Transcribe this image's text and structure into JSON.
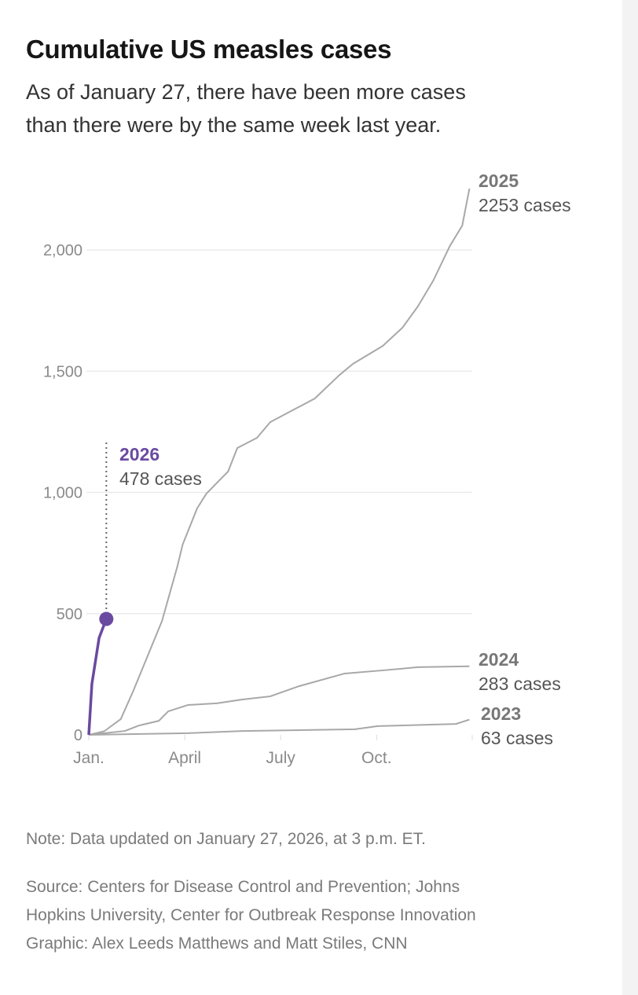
{
  "title": "Cumulative US measles cases",
  "subtitle_lines": [
    "As of January 27, there have been more cases",
    "than there were by the same week last year."
  ],
  "note": "Note: Data updated on January 27, 2026, at 3 p.m. ET.",
  "source_lines": [
    "Source: Centers for Disease Control and Prevention; Johns",
    "Hopkins University, Center for Outbreak Response Innovation",
    "Graphic: Alex Leeds Matthews and Matt Stiles, CNN"
  ],
  "chart_data": {
    "type": "line",
    "title": "Cumulative US measles cases",
    "xlabel": "",
    "ylabel": "",
    "x_ticks": [
      "Jan.",
      "April",
      "July",
      "Oct."
    ],
    "y_ticks": [
      {
        "value": 0,
        "label": "0"
      },
      {
        "value": 500,
        "label": "500"
      },
      {
        "value": 1000,
        "label": "1,000"
      },
      {
        "value": 1500,
        "label": "1,500"
      },
      {
        "value": 2000,
        "label": "2,000"
      }
    ],
    "ylim": [
      0,
      2300
    ],
    "xlim": [
      "Jan 1",
      "Dec 31"
    ],
    "grid": "horizontal",
    "colors": {
      "highlight": "#6a4aa0",
      "other": "#a8a8a8"
    },
    "series": [
      {
        "name": "2025",
        "end_label": "2253 cases",
        "highlight": false,
        "points": [
          [
            "01-01",
            0
          ],
          [
            "01-16",
            15
          ],
          [
            "02-01",
            65
          ],
          [
            "02-13",
            180
          ],
          [
            "03-10",
            470
          ],
          [
            "03-25",
            697
          ],
          [
            "03-30",
            785
          ],
          [
            "04-13",
            934
          ],
          [
            "04-22",
            995
          ],
          [
            "05-12",
            1086
          ],
          [
            "05-21",
            1183
          ],
          [
            "06-09",
            1225
          ],
          [
            "06-22",
            1290
          ],
          [
            "08-03",
            1387
          ],
          [
            "08-27",
            1484
          ],
          [
            "09-09",
            1530
          ],
          [
            "10-07",
            1604
          ],
          [
            "10-26",
            1679
          ],
          [
            "11-10",
            1767
          ],
          [
            "11-25",
            1874
          ],
          [
            "12-10",
            2016
          ],
          [
            "12-22",
            2100
          ],
          [
            "12-29",
            2253
          ]
        ]
      },
      {
        "name": "2024",
        "end_label": "283 cases",
        "highlight": false,
        "points": [
          [
            "01-01",
            0
          ],
          [
            "02-05",
            16
          ],
          [
            "02-19",
            39
          ],
          [
            "03-07",
            58
          ],
          [
            "03-16",
            97
          ],
          [
            "04-04",
            123
          ],
          [
            "05-01",
            130
          ],
          [
            "05-26",
            146
          ],
          [
            "06-22",
            159
          ],
          [
            "07-19",
            201
          ],
          [
            "09-01",
            253
          ],
          [
            "10-07",
            266
          ],
          [
            "11-10",
            279
          ],
          [
            "12-29",
            283
          ]
        ]
      },
      {
        "name": "2023",
        "end_label": "63 cases",
        "highlight": false,
        "points": [
          [
            "01-01",
            0
          ],
          [
            "04-04",
            7
          ],
          [
            "05-26",
            16
          ],
          [
            "09-11",
            23
          ],
          [
            "10-02",
            36
          ],
          [
            "12-16",
            45
          ],
          [
            "12-29",
            63
          ]
        ]
      },
      {
        "name": "2026",
        "end_label": "478 cases",
        "highlight": true,
        "points": [
          [
            "01-01",
            0
          ],
          [
            "01-04",
            210
          ],
          [
            "01-11",
            400
          ],
          [
            "01-18",
            478
          ]
        ]
      }
    ]
  }
}
